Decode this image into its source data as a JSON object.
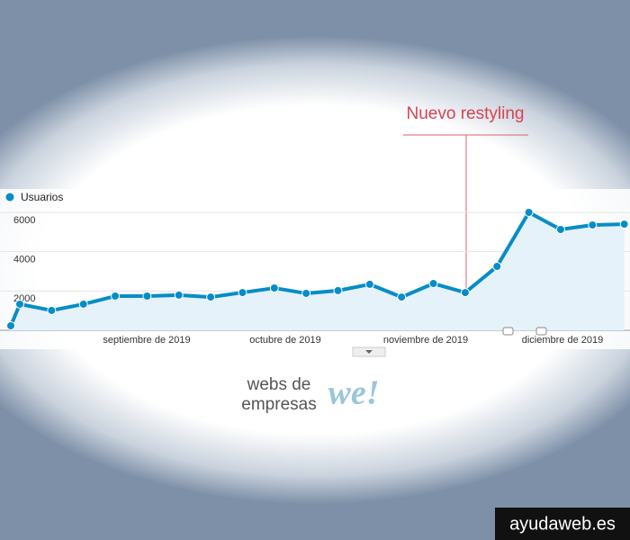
{
  "chart_data": {
    "type": "line",
    "annotation": "Nuevo restyling",
    "categories": [
      null,
      null,
      null,
      null,
      null,
      null,
      null,
      null,
      null,
      null,
      null,
      null,
      null,
      null,
      null,
      null,
      null,
      null,
      null,
      null,
      null
    ],
    "x_labels": [
      "septiembre de 2019",
      "octubre de 2019",
      "noviembre de 2019",
      "diciembre de 2019"
    ],
    "series": [
      {
        "name": "Usuarios",
        "color": "#058dc7",
        "values": [
          230,
          1330,
          1010,
          1330,
          1740,
          1740,
          1790,
          1690,
          1920,
          2150,
          1880,
          2020,
          2340,
          1690,
          2380,
          1920,
          3250,
          6000,
          5130,
          5360,
          5400
        ]
      }
    ],
    "ylim": [
      0,
      6000
    ],
    "yticks": [
      2000,
      4000,
      6000
    ],
    "grid": true
  },
  "logo": {
    "line1": "webs de",
    "line2": "empresas",
    "mark": "we!"
  },
  "watermark": "ayudaweb.es"
}
